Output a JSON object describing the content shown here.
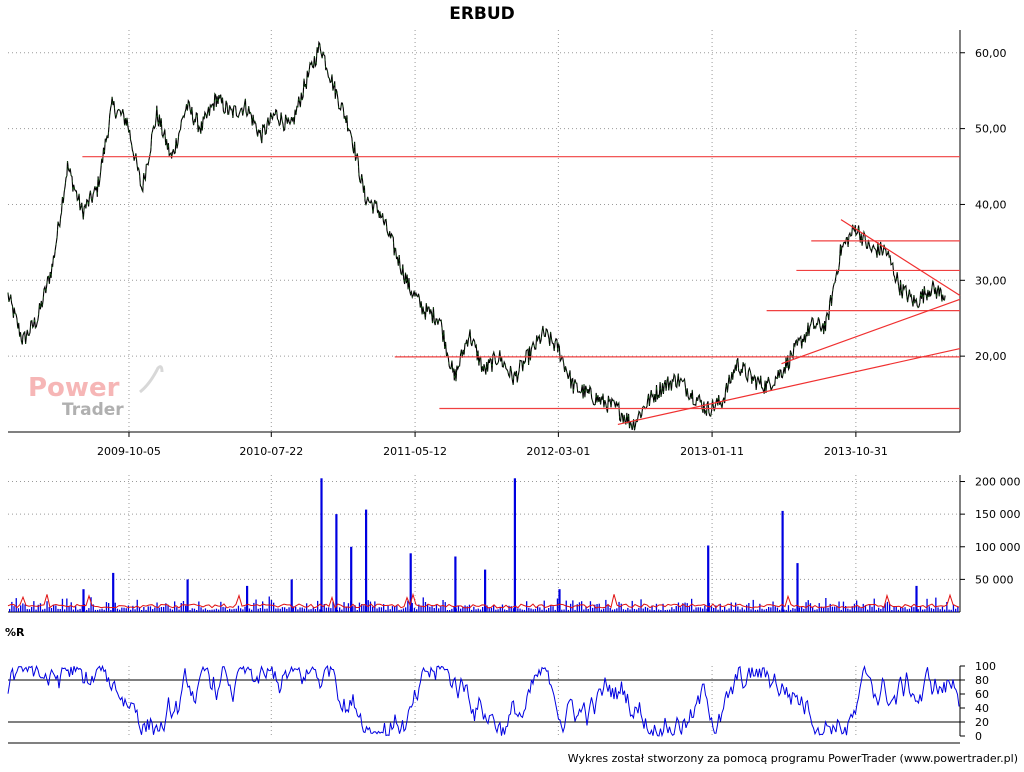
{
  "title": "ERBUD",
  "watermark": {
    "line1": "Power",
    "line2": "Trader"
  },
  "footer": "Wykres został stworzony za pomocą programu PowerTrader (www.powertrader.pl)",
  "panels": {
    "volume": {
      "label": ""
    },
    "williams": {
      "label": "%R"
    }
  },
  "colors": {
    "price": "#000000",
    "price_alt": "#1a7a1a",
    "lines": "#f04040",
    "volume": "#0000e0",
    "volume_ma": "#e01010",
    "wr": "#0000e0"
  },
  "chart_data": [
    {
      "type": "line",
      "name_shown": "ERBUD",
      "title": "ERBUD",
      "x_ticks": [
        "2009-10-05",
        "2010-07-22",
        "2011-05-12",
        "2012-03-01",
        "2013-01-11",
        "2013-10-31"
      ],
      "y_ticks": [
        "60,00",
        "50,00",
        "40,00",
        "30,00",
        "20,00"
      ],
      "ylim": [
        10,
        63
      ],
      "x_range": [
        "2009-02",
        "2014-06"
      ],
      "series": [
        {
          "points": [
            [
              "2009-02",
              28
            ],
            [
              "2009-03",
              22
            ],
            [
              "2009-04",
              25
            ],
            [
              "2009-05",
              32
            ],
            [
              "2009-06",
              45
            ],
            [
              "2009-07",
              39
            ],
            [
              "2009-08",
              42
            ],
            [
              "2009-09",
              53
            ],
            [
              "2009-10",
              51
            ],
            [
              "2009-11",
              42
            ],
            [
              "2009-12",
              52
            ],
            [
              "2010-01",
              46
            ],
            [
              "2010-02",
              53
            ],
            [
              "2010-03",
              50
            ],
            [
              "2010-04",
              54
            ],
            [
              "2010-05",
              52
            ],
            [
              "2010-06",
              53
            ],
            [
              "2010-07",
              49
            ],
            [
              "2010-08",
              52
            ],
            [
              "2010-09",
              50
            ],
            [
              "2010-10",
              56
            ],
            [
              "2010-11",
              61
            ],
            [
              "2010-12",
              55
            ],
            [
              "2011-01",
              50
            ],
            [
              "2011-02",
              41
            ],
            [
              "2011-03",
              39
            ],
            [
              "2011-04",
              34
            ],
            [
              "2011-05",
              29
            ],
            [
              "2011-06",
              26
            ],
            [
              "2011-07",
              25
            ],
            [
              "2011-08",
              17
            ],
            [
              "2011-09",
              23
            ],
            [
              "2011-10",
              18
            ],
            [
              "2011-11",
              20
            ],
            [
              "2011-12",
              17
            ],
            [
              "2012-01",
              20
            ],
            [
              "2012-02",
              23
            ],
            [
              "2012-03",
              21
            ],
            [
              "2012-04",
              16
            ],
            [
              "2012-05",
              15
            ],
            [
              "2012-06",
              14
            ],
            [
              "2012-07",
              13
            ],
            [
              "2012-08",
              11
            ],
            [
              "2012-09",
              14
            ],
            [
              "2012-10",
              16
            ],
            [
              "2012-11",
              17
            ],
            [
              "2012-12",
              15
            ],
            [
              "2013-01",
              13
            ],
            [
              "2013-02",
              14
            ],
            [
              "2013-03",
              19
            ],
            [
              "2013-04",
              17
            ],
            [
              "2013-05",
              16
            ],
            [
              "2013-06",
              18
            ],
            [
              "2013-07",
              21
            ],
            [
              "2013-08",
              24
            ],
            [
              "2013-09",
              24
            ],
            [
              "2013-10",
              34
            ],
            [
              "2013-11",
              37
            ],
            [
              "2013-12",
              34
            ],
            [
              "2014-01",
              34
            ],
            [
              "2014-02",
              29
            ],
            [
              "2014-03",
              27
            ],
            [
              "2014-04",
              29
            ],
            [
              "2014-05",
              28
            ]
          ]
        }
      ],
      "horizontal_lines": [
        {
          "y": 46.3,
          "from": "2009-07",
          "to": "2014-06"
        },
        {
          "y": 35.2,
          "from": "2013-08",
          "to": "2014-06"
        },
        {
          "y": 31.3,
          "from": "2013-07",
          "to": "2014-06"
        },
        {
          "y": 26.0,
          "from": "2013-05",
          "to": "2014-06"
        },
        {
          "y": 19.9,
          "from": "2011-04",
          "to": "2014-06"
        },
        {
          "y": 13.1,
          "from": "2011-07",
          "to": "2014-06"
        }
      ],
      "trend_lines": [
        {
          "from": [
            "2012-07",
            11.0
          ],
          "to": [
            "2014-06",
            21.0
          ]
        },
        {
          "from": [
            "2013-06",
            19.0
          ],
          "to": [
            "2014-06",
            27.5
          ]
        },
        {
          "from": [
            "2013-10",
            38.0
          ],
          "to": [
            "2014-06",
            28.0
          ]
        }
      ]
    },
    {
      "type": "bar",
      "title": "",
      "y_ticks": [
        "200 000",
        "150 000",
        "100 000",
        "50 000"
      ],
      "ylim": [
        0,
        210000
      ],
      "spikes": [
        [
          "2009-07",
          35000
        ],
        [
          "2009-09",
          60000
        ],
        [
          "2010-02",
          50000
        ],
        [
          "2010-06",
          40000
        ],
        [
          "2010-09",
          50000
        ],
        [
          "2010-11",
          205000
        ],
        [
          "2010-12",
          150000
        ],
        [
          "2011-01",
          100000
        ],
        [
          "2011-02",
          157000
        ],
        [
          "2011-05",
          90000
        ],
        [
          "2011-08",
          85000
        ],
        [
          "2011-10",
          65000
        ],
        [
          "2011-12",
          205000
        ],
        [
          "2012-03",
          35000
        ],
        [
          "2013-01",
          102000
        ],
        [
          "2013-06",
          155000
        ],
        [
          "2013-07",
          75000
        ],
        [
          "2014-03",
          40000
        ]
      ],
      "moving_average_level": 8000
    },
    {
      "type": "line",
      "title": "%R",
      "y_ticks": [
        "100",
        "80",
        "60",
        "40",
        "20",
        "0"
      ],
      "ylim": [
        0,
        100
      ],
      "reference_lines": [
        80,
        20
      ]
    }
  ]
}
